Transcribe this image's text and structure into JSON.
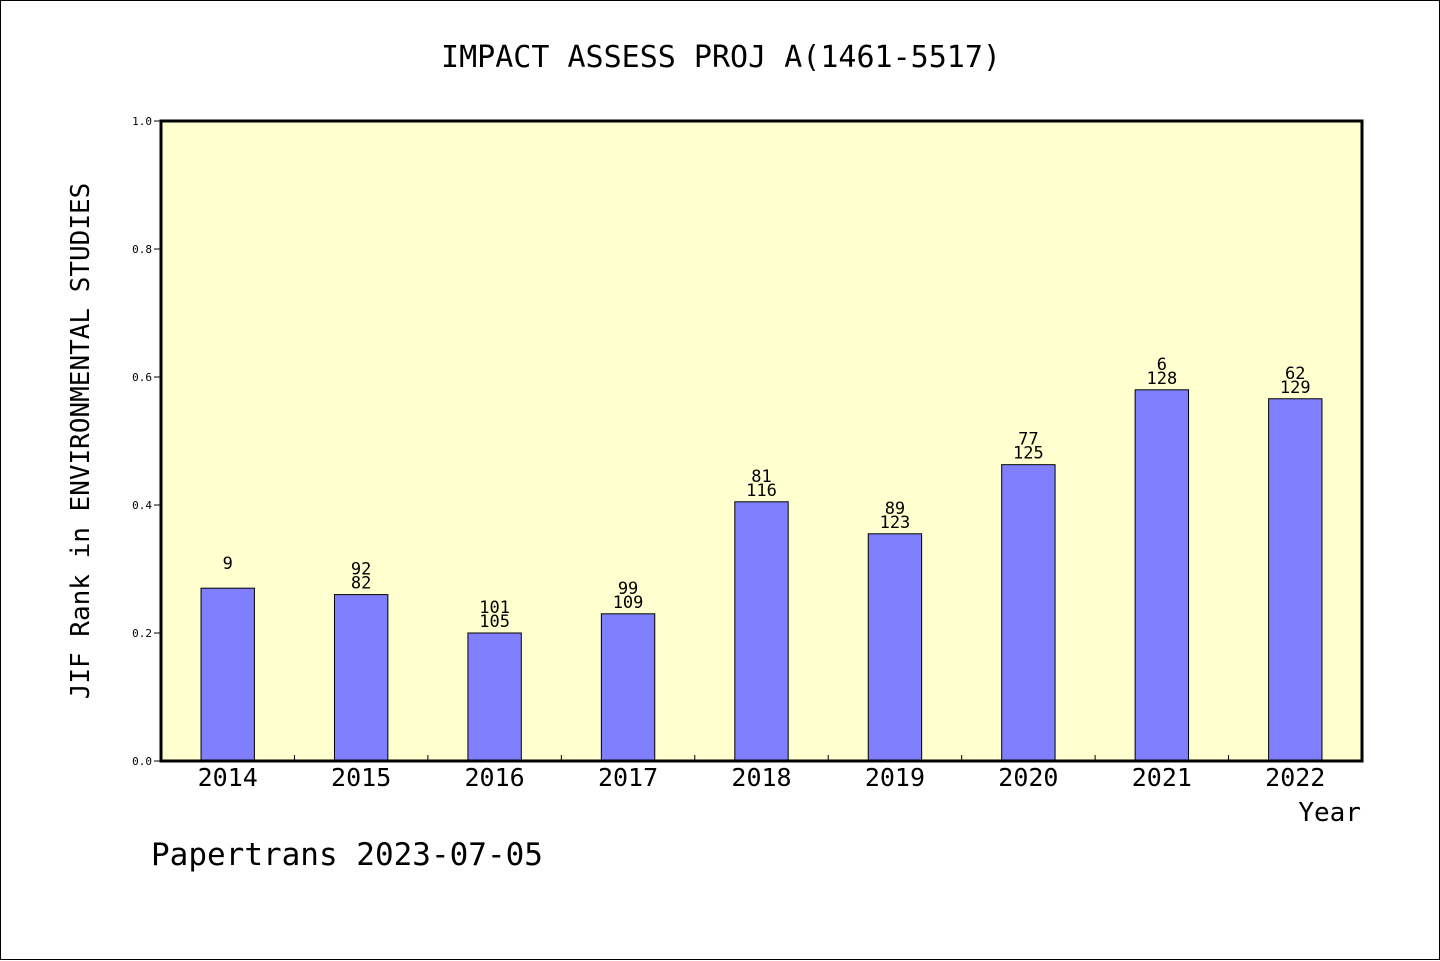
{
  "chart_data": {
    "type": "bar",
    "title": "IMPACT ASSESS PROJ A(1461-5517)",
    "xlabel": "Year",
    "ylabel": "JIF Rank in ENVIRONMENTAL STUDIES",
    "ylim": [
      0,
      1.0
    ],
    "yticks": [
      "0.0",
      "0.2",
      "0.4",
      "0.6",
      "0.8",
      "1.0"
    ],
    "categories": [
      "2014",
      "2015",
      "2016",
      "2017",
      "2018",
      "2019",
      "2020",
      "2021",
      "2022"
    ],
    "values": [
      0.27,
      0.26,
      0.2,
      0.23,
      0.405,
      0.355,
      0.463,
      0.58,
      0.566
    ],
    "bar_labels": [
      [
        "9"
      ],
      [
        "92",
        "82"
      ],
      [
        "101",
        "105"
      ],
      [
        "99",
        "109"
      ],
      [
        "81",
        "116"
      ],
      [
        "89",
        "123"
      ],
      [
        "77",
        "125"
      ],
      [
        "6",
        "128"
      ],
      [
        "62",
        "129"
      ]
    ],
    "grid": false,
    "colors": {
      "plot_background": "#ffffd0",
      "bar_fill": "#8080ff",
      "bar_stroke": "#000000"
    }
  },
  "footer": "Papertrans 2023-07-05"
}
